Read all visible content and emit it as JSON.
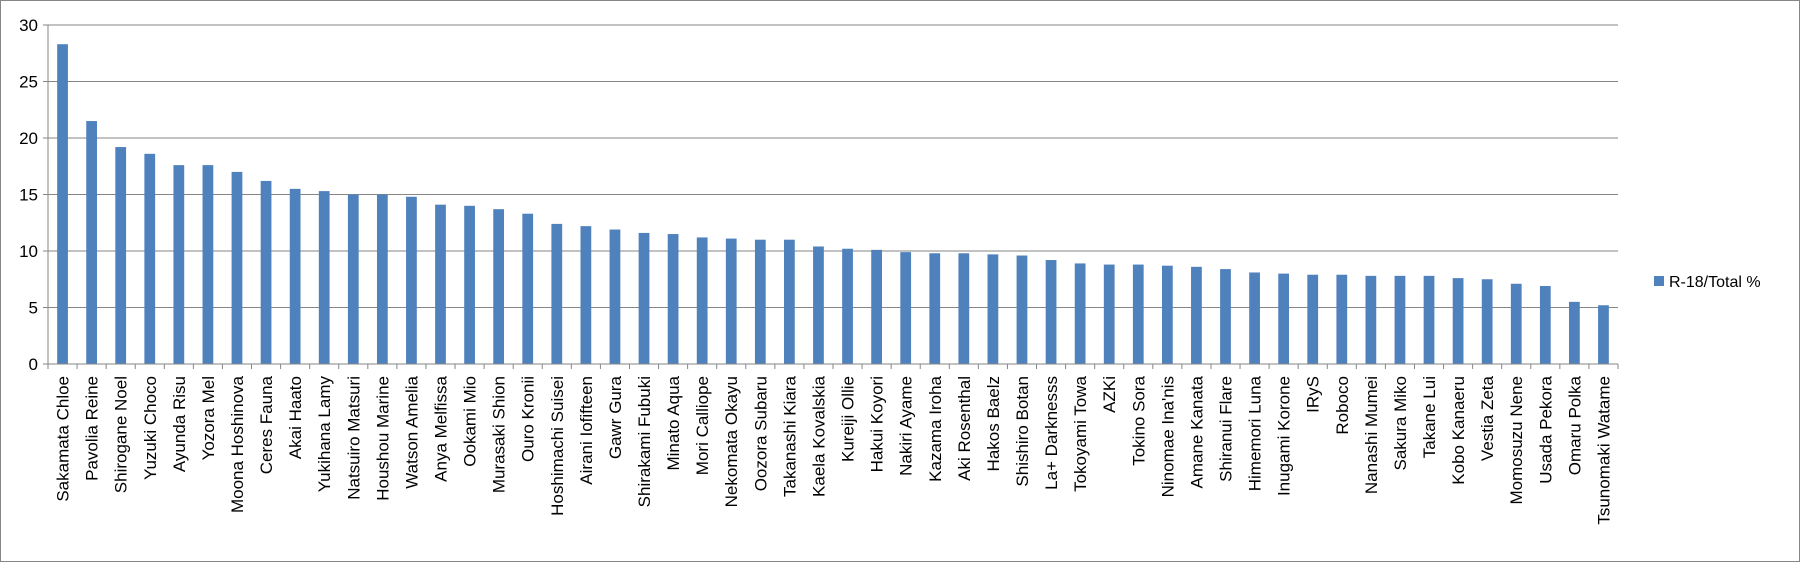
{
  "chart_data": {
    "type": "bar",
    "title": "",
    "xlabel": "",
    "ylabel": "",
    "ylim": [
      0,
      30
    ],
    "yticks": [
      0,
      5,
      10,
      15,
      20,
      25,
      30
    ],
    "grid": true,
    "legend_position": "right",
    "bar_color": "#4F81BD",
    "categories": [
      "Sakamata Chloe",
      "Pavolia Reine",
      "Shirogane Noel",
      "Yuzuki Choco",
      "Ayunda Risu",
      "Yozora Mel",
      "Moona Hoshinova",
      "Ceres Fauna",
      "Akai Haato",
      "Yukihana Lamy",
      "Natsuiro Matsuri",
      "Houshou Marine",
      "Watson Amelia",
      "Anya Melfissa",
      "Ookami Mio",
      "Murasaki Shion",
      "Ouro Kronii",
      "Hoshimachi Suisei",
      "Airani Iofifteen",
      "Gawr Gura",
      "Shirakami Fubuki",
      "Minato Aqua",
      "Mori Calliope",
      "Nekomata Okayu",
      "Oozora Subaru",
      "Takanashi Kiara",
      "Kaela Kovalskia",
      "Kureiji Ollie",
      "Hakui Koyori",
      "Nakiri Ayame",
      "Kazama Iroha",
      "Aki Rosenthal",
      "Hakos Baelz",
      "Shishiro Botan",
      "La+ Darknesss",
      "Tokoyami Towa",
      "AZKi",
      "Tokino Sora",
      "Ninomae Ina'nis",
      "Amane Kanata",
      "Shiranui Flare",
      "Himemori Luna",
      "Inugami Korone",
      "IRyS",
      "Roboco",
      "Nanashi Mumei",
      "Sakura Miko",
      "Takane Lui",
      "Kobo Kanaeru",
      "Vestia Zeta",
      "Momosuzu Nene",
      "Usada Pekora",
      "Omaru Polka",
      "Tsunomaki Watame"
    ],
    "series": [
      {
        "name": "R-18/Total %",
        "values": [
          28.3,
          21.5,
          19.2,
          18.6,
          17.6,
          17.6,
          17.0,
          16.2,
          15.5,
          15.3,
          15.0,
          15.0,
          14.8,
          14.1,
          14.0,
          13.7,
          13.3,
          12.4,
          12.2,
          11.9,
          11.6,
          11.5,
          11.2,
          11.1,
          11.0,
          11.0,
          10.4,
          10.2,
          10.1,
          9.9,
          9.8,
          9.8,
          9.7,
          9.6,
          9.2,
          8.9,
          8.8,
          8.8,
          8.7,
          8.6,
          8.4,
          8.1,
          8.0,
          7.9,
          7.9,
          7.8,
          7.8,
          7.8,
          7.6,
          7.5,
          7.1,
          6.9,
          5.5,
          5.2
        ]
      }
    ]
  }
}
